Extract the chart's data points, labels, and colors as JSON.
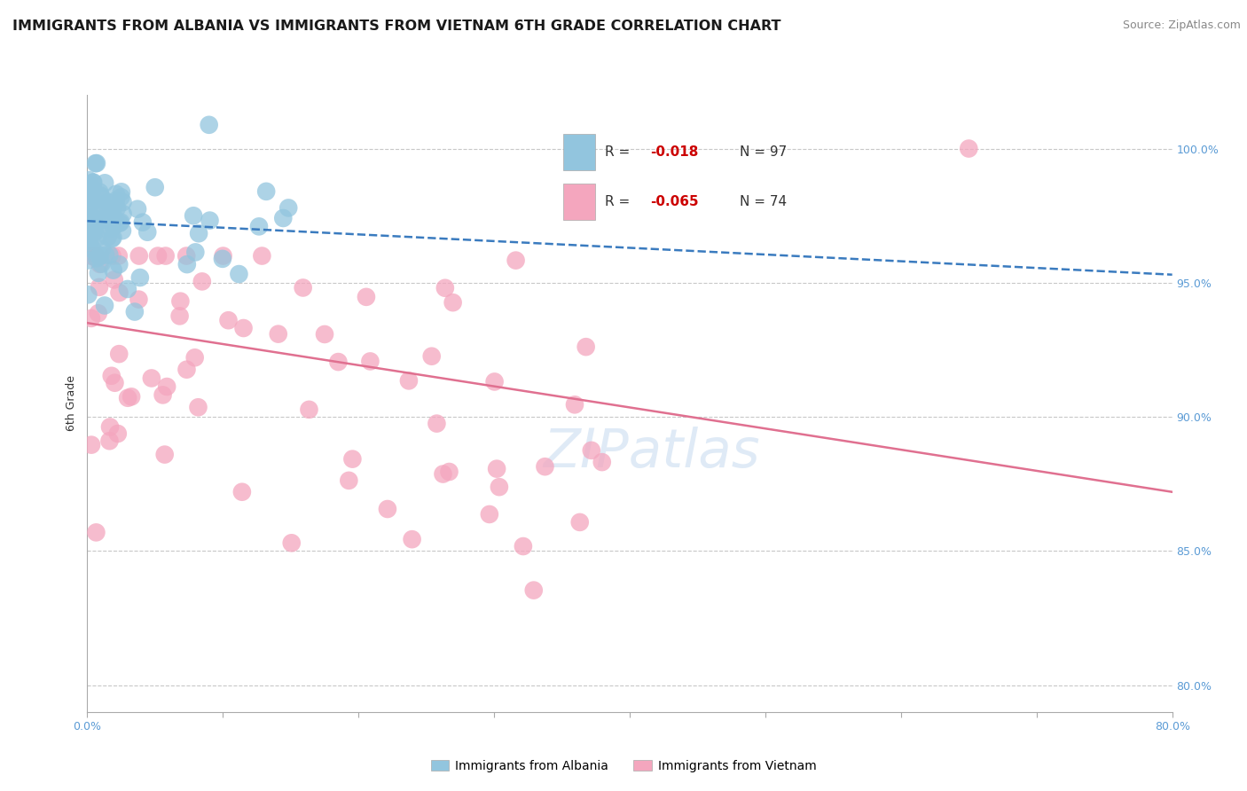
{
  "title": "IMMIGRANTS FROM ALBANIA VS IMMIGRANTS FROM VIETNAM 6TH GRADE CORRELATION CHART",
  "source": "Source: ZipAtlas.com",
  "ylabel": "6th Grade",
  "xlim": [
    0.0,
    80.0
  ],
  "ylim": [
    79.0,
    102.0
  ],
  "y_right_ticks": [
    80.0,
    85.0,
    90.0,
    95.0,
    100.0
  ],
  "y_right_labels": [
    "80.0%",
    "85.0%",
    "90.0%",
    "95.0%",
    "100.0%"
  ],
  "albania_color": "#92c5de",
  "vietnam_color": "#f4a6be",
  "albania_R": -0.018,
  "albania_N": 97,
  "vietnam_R": -0.065,
  "vietnam_N": 74,
  "albania_trend_x": [
    0.0,
    80.0
  ],
  "albania_trend_y": [
    97.3,
    95.3
  ],
  "vietnam_trend_x": [
    0.0,
    80.0
  ],
  "vietnam_trend_y": [
    93.5,
    87.2
  ],
  "albania_trend_color": "#3a7bbf",
  "vietnam_trend_color": "#e07090",
  "bg_color": "#ffffff",
  "grid_color": "#c8c8c8",
  "title_fontsize": 11.5,
  "source_fontsize": 9,
  "axis_label_fontsize": 9,
  "tick_fontsize": 9,
  "legend_fontsize": 11
}
